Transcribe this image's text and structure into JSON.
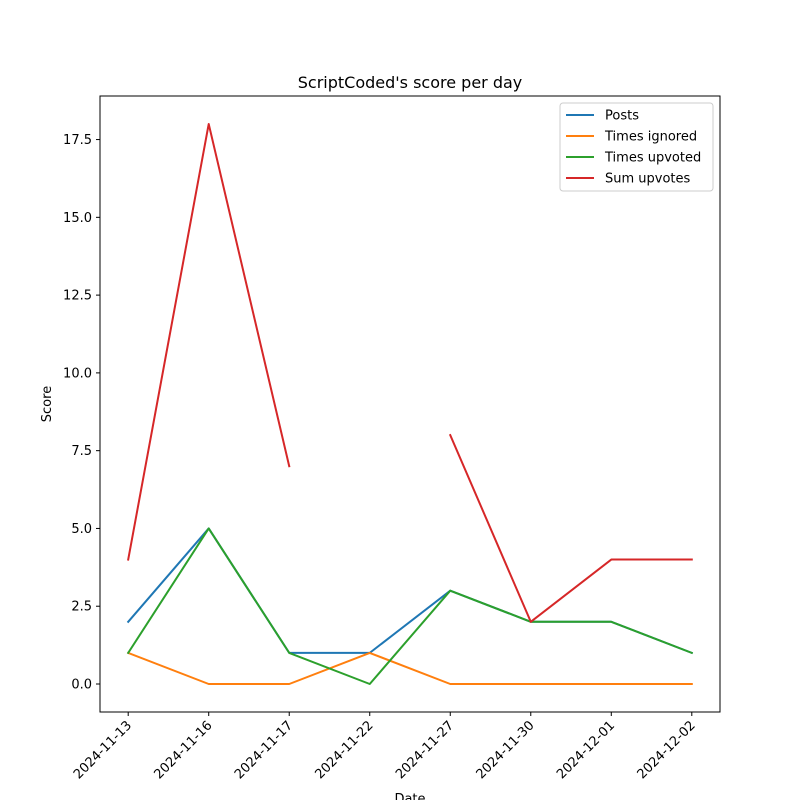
{
  "chart_data": {
    "type": "line",
    "title": "ScriptCoded's score per day",
    "xlabel": "Date",
    "ylabel": "Score",
    "categories": [
      "2024-11-13",
      "2024-11-16",
      "2024-11-17",
      "2024-11-22",
      "2024-11-27",
      "2024-11-30",
      "2024-12-01",
      "2024-12-02"
    ],
    "ylim": [
      -0.9,
      18.9
    ],
    "yticks": [
      0.0,
      2.5,
      5.0,
      7.5,
      10.0,
      12.5,
      15.0,
      17.5
    ],
    "ytick_labels": [
      "0.0",
      "2.5",
      "5.0",
      "7.5",
      "10.0",
      "12.5",
      "15.0",
      "17.5"
    ],
    "grid": false,
    "legend_position": "top-right",
    "series": [
      {
        "name": "Posts",
        "color": "#1f77b4",
        "values": [
          2,
          5,
          1,
          1,
          3,
          2,
          2,
          1
        ]
      },
      {
        "name": "Times ignored",
        "color": "#ff7f0e",
        "values": [
          1,
          0,
          0,
          1,
          0,
          0,
          0,
          0
        ]
      },
      {
        "name": "Times upvoted",
        "color": "#2ca02c",
        "values": [
          1,
          5,
          1,
          0,
          3,
          2,
          2,
          1
        ]
      },
      {
        "name": "Sum upvotes",
        "color": "#d62728",
        "values": [
          4,
          18,
          7,
          null,
          8,
          2,
          4,
          4
        ]
      }
    ]
  }
}
